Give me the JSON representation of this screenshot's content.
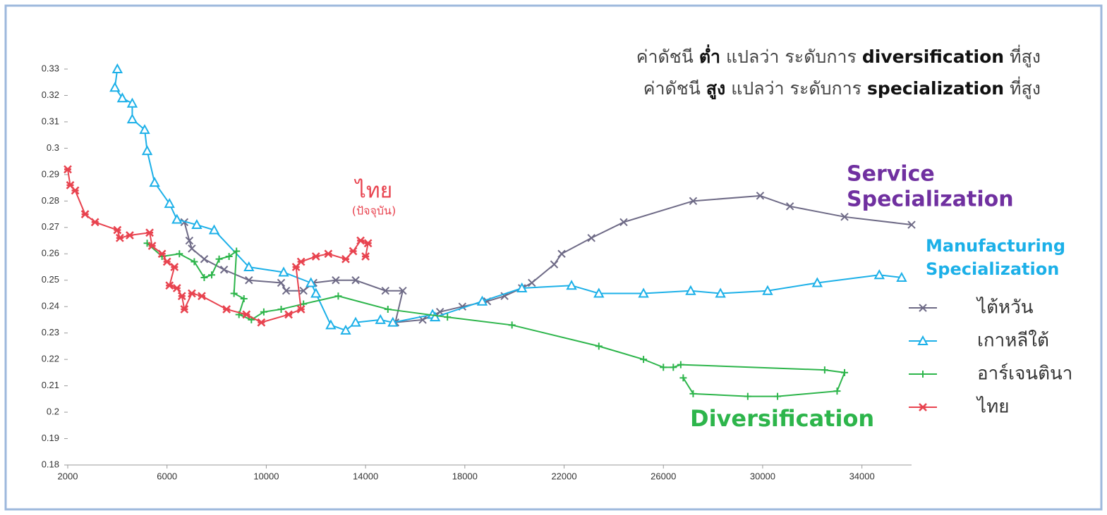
{
  "chart_data": {
    "type": "line",
    "note_lines": [
      [
        "ค่าดัชนี ",
        "ต่ำ",
        " แปลว่า ระดับการ ",
        "diversification",
        " ที่สูง"
      ],
      [
        "ค่าดัชนี ",
        "สูง",
        " แปลว่า ระดับการ ",
        "specialization",
        " ที่สูง"
      ]
    ],
    "annotations": [
      {
        "text": "ไทย",
        "color": "#e8434f"
      },
      {
        "text": "(ปัจจุบัน)",
        "color": "#e8434f"
      },
      {
        "text": "Service",
        "color": "#7030a0"
      },
      {
        "text": "Specialization",
        "color": "#7030a0"
      },
      {
        "text": "Manufacturing",
        "color": "#1cb0e8"
      },
      {
        "text": "Specialization",
        "color": "#1cb0e8"
      },
      {
        "text": "Diversification",
        "color": "#2db54b"
      }
    ],
    "xlim": [
      2000,
      36000
    ],
    "xticks": [
      2000,
      6000,
      10000,
      14000,
      18000,
      22000,
      26000,
      30000,
      34000
    ],
    "ylim": [
      0.18,
      0.33
    ],
    "yticks": [
      0.18,
      0.19,
      0.2,
      0.21,
      0.22,
      0.23,
      0.24,
      0.25,
      0.26,
      0.27,
      0.28,
      0.29,
      0.3,
      0.31,
      0.32,
      0.33
    ],
    "series": [
      {
        "name": "ไต้หวัน",
        "color": "#6e6a86",
        "marker": "x",
        "x": [
          6700,
          6900,
          7000,
          7500,
          8300,
          9300,
          10600,
          10800,
          11500,
          11900,
          12800,
          13600,
          14800,
          15500,
          15200,
          16300,
          17000,
          17900,
          18900,
          19600,
          20300,
          20700,
          21600,
          21900,
          23100,
          24400,
          27200,
          29900,
          31100,
          33300,
          36000
        ],
        "values": [
          0.272,
          0.265,
          0.262,
          0.258,
          0.254,
          0.25,
          0.249,
          0.246,
          0.246,
          0.249,
          0.25,
          0.25,
          0.246,
          0.246,
          0.234,
          0.235,
          0.238,
          0.24,
          0.242,
          0.244,
          0.247,
          0.249,
          0.256,
          0.26,
          0.266,
          0.272,
          0.28,
          0.282,
          0.278,
          0.274,
          0.271
        ]
      },
      {
        "name": "เกาหลีใต้",
        "color": "#1cb0e8",
        "marker": "triangle",
        "x": [
          4000,
          3900,
          4200,
          4600,
          4600,
          5100,
          5200,
          5500,
          6100,
          6400,
          7200,
          7900,
          9300,
          10700,
          11800,
          12000,
          12600,
          13200,
          13600,
          14600,
          15100,
          16700,
          16800,
          18700,
          20300,
          22300,
          23400,
          25200,
          27100,
          28300,
          30200,
          32200,
          34700,
          35600
        ],
        "values": [
          0.33,
          0.323,
          0.319,
          0.317,
          0.311,
          0.307,
          0.299,
          0.287,
          0.279,
          0.273,
          0.271,
          0.269,
          0.255,
          0.253,
          0.249,
          0.245,
          0.233,
          0.231,
          0.234,
          0.235,
          0.234,
          0.237,
          0.236,
          0.242,
          0.247,
          0.248,
          0.245,
          0.245,
          0.246,
          0.245,
          0.246,
          0.249,
          0.252,
          0.251
        ]
      },
      {
        "name": "อาร์เจนตินา",
        "color": "#2db54b",
        "marker": "plus",
        "x": [
          5200,
          5800,
          6500,
          7100,
          7500,
          7800,
          8100,
          8500,
          8800,
          8700,
          9100,
          8900,
          9400,
          9900,
          10600,
          11500,
          12900,
          14900,
          17300,
          19900,
          23400,
          25200,
          26000,
          26400,
          26700,
          32500,
          33300,
          33000,
          30600,
          29400,
          27200,
          26800
        ],
        "values": [
          0.264,
          0.259,
          0.26,
          0.257,
          0.251,
          0.252,
          0.258,
          0.259,
          0.261,
          0.245,
          0.243,
          0.237,
          0.235,
          0.238,
          0.239,
          0.241,
          0.244,
          0.239,
          0.236,
          0.233,
          0.225,
          0.22,
          0.217,
          0.217,
          0.218,
          0.216,
          0.215,
          0.208,
          0.206,
          0.206,
          0.207,
          0.213
        ]
      },
      {
        "name": "ไทย",
        "color": "#e8434f",
        "marker": "star",
        "x": [
          2000,
          2100,
          2300,
          2700,
          3100,
          4000,
          4100,
          4500,
          5300,
          5400,
          5800,
          6000,
          6300,
          6100,
          6400,
          6600,
          6700,
          7000,
          7400,
          8400,
          9200,
          9800,
          10900,
          11400,
          11200,
          11400,
          12000,
          12500,
          13200,
          13500,
          13800,
          14100,
          14000
        ],
        "values": [
          0.292,
          0.286,
          0.284,
          0.275,
          0.272,
          0.269,
          0.266,
          0.267,
          0.268,
          0.263,
          0.26,
          0.257,
          0.255,
          0.248,
          0.247,
          0.244,
          0.239,
          0.245,
          0.244,
          0.239,
          0.237,
          0.234,
          0.237,
          0.239,
          0.255,
          0.257,
          0.259,
          0.26,
          0.258,
          0.261,
          0.265,
          0.264,
          0.259
        ]
      }
    ]
  }
}
